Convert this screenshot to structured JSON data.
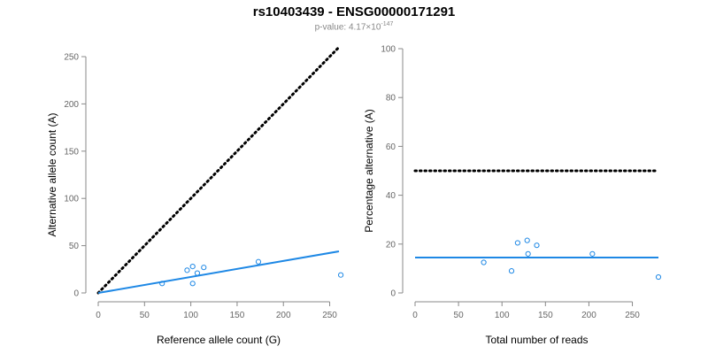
{
  "header": {
    "title": "rs10403439 - ENSG00000171291",
    "pvalue_prefix": "p-value: ",
    "pvalue_mantissa": "4.17×10",
    "pvalue_exponent": "-147"
  },
  "colors": {
    "series": "#1e88e5",
    "reference_line": "#000000",
    "axis": "#888888"
  },
  "chart_data": [
    {
      "type": "scatter",
      "xlabel": "Reference allele count (G)",
      "ylabel": "Alternative allele count (A)",
      "xlim": [
        0,
        260
      ],
      "ylim": [
        0,
        250
      ],
      "xticks": [
        0,
        50,
        100,
        150,
        200,
        250
      ],
      "yticks": [
        0,
        50,
        100,
        150,
        200,
        250
      ],
      "points": [
        {
          "x": 69,
          "y": 10
        },
        {
          "x": 96,
          "y": 24
        },
        {
          "x": 102,
          "y": 28
        },
        {
          "x": 102,
          "y": 10
        },
        {
          "x": 107,
          "y": 21
        },
        {
          "x": 114,
          "y": 27
        },
        {
          "x": 173,
          "y": 33
        },
        {
          "x": 262,
          "y": 19
        }
      ],
      "fit_line": {
        "x": [
          0,
          260
        ],
        "y": [
          0,
          44
        ]
      },
      "reference_line": {
        "x": [
          0,
          260
        ],
        "y": [
          0,
          260
        ],
        "style": "dotted"
      }
    },
    {
      "type": "scatter",
      "xlabel": "Total number of reads",
      "ylabel": "Percentage alternative (A)",
      "xlim": [
        0,
        280
      ],
      "ylim": [
        0,
        100
      ],
      "xticks": [
        0,
        50,
        100,
        150,
        200,
        250
      ],
      "yticks": [
        0,
        20,
        40,
        60,
        80,
        100
      ],
      "points": [
        {
          "x": 79,
          "y": 12.5
        },
        {
          "x": 111,
          "y": 9
        },
        {
          "x": 118,
          "y": 20.5
        },
        {
          "x": 129,
          "y": 21.5
        },
        {
          "x": 130,
          "y": 16
        },
        {
          "x": 140,
          "y": 19.5
        },
        {
          "x": 204,
          "y": 16
        },
        {
          "x": 280,
          "y": 6.5
        }
      ],
      "fit_line": {
        "x": [
          0,
          280
        ],
        "y": [
          14.5,
          14.5
        ]
      },
      "reference_line": {
        "x": [
          0,
          280
        ],
        "y": [
          50,
          50
        ],
        "style": "dotted"
      }
    }
  ]
}
